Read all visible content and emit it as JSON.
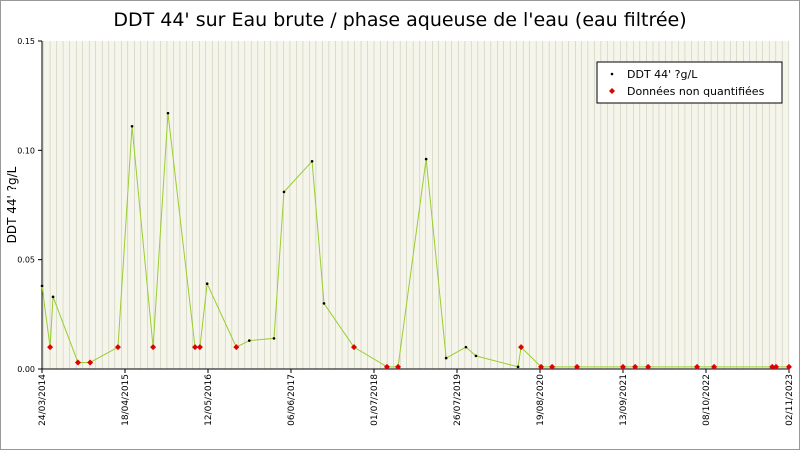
{
  "chart_data": {
    "type": "line",
    "title": "DDT 44' sur Eau brute / phase aqueuse de l'eau (eau filtrée)",
    "y_label": "DDT 44' ?g/L",
    "x": [
      "2014-03-24",
      "2014-05-01",
      "2014-05-15",
      "2014-09-09",
      "2014-11-05",
      "2015-03-16",
      "2015-05-21",
      "2015-08-28",
      "2015-11-06",
      "2016-03-12",
      "2016-04-04",
      "2016-05-08",
      "2016-09-22",
      "2016-11-22",
      "2017-03-18",
      "2017-05-04",
      "2017-09-13",
      "2017-11-08",
      "2018-03-29",
      "2018-08-31",
      "2018-10-22",
      "2019-03-03",
      "2019-06-05",
      "2019-09-06",
      "2019-10-23",
      "2020-05-08",
      "2020-05-22",
      "2020-08-24",
      "2020-10-15",
      "2021-02-09",
      "2021-09-13",
      "2021-11-09",
      "2022-01-09",
      "2022-08-27",
      "2022-11-15",
      "2023-08-15",
      "2023-09-02",
      "2023-11-02"
    ],
    "series": [
      {
        "name": "DDT 44' ?g/L",
        "color": "#000000",
        "marker": "dot",
        "values": [
          0.038,
          null,
          0.033,
          null,
          null,
          null,
          0.111,
          null,
          0.117,
          null,
          null,
          0.039,
          null,
          0.013,
          0.014,
          0.081,
          0.095,
          0.03,
          null,
          null,
          null,
          0.096,
          0.005,
          0.01,
          0.006,
          0.001,
          null,
          null,
          null,
          null,
          null,
          null,
          null,
          null,
          null,
          null,
          null,
          null
        ]
      },
      {
        "name": "Données non quantifiées",
        "color": "#e00000",
        "marker": "diamond",
        "values": [
          null,
          0.01,
          null,
          0.003,
          0.003,
          0.01,
          null,
          0.01,
          null,
          0.01,
          0.01,
          null,
          0.01,
          null,
          null,
          null,
          null,
          null,
          0.01,
          0.001,
          0.001,
          null,
          null,
          null,
          null,
          null,
          0.01,
          0.001,
          0.001,
          0.001,
          0.001,
          0.001,
          0.001,
          0.001,
          0.001,
          0.001,
          0.001,
          0.001
        ]
      }
    ],
    "line_color": "#9acd32",
    "xlim": [
      "2014-03-24",
      "2023-11-02"
    ],
    "xticks": [
      {
        "value": "2014-03-24",
        "label": "24/03/2014"
      },
      {
        "value": "2015-04-18",
        "label": "18/04/2015"
      },
      {
        "value": "2016-05-12",
        "label": "12/05/2016"
      },
      {
        "value": "2017-06-06",
        "label": "06/06/2017"
      },
      {
        "value": "2018-07-01",
        "label": "01/07/2018"
      },
      {
        "value": "2019-07-26",
        "label": "26/07/2019"
      },
      {
        "value": "2020-08-19",
        "label": "19/08/2020"
      },
      {
        "value": "2021-09-13",
        "label": "13/09/2021"
      },
      {
        "value": "2022-10-08",
        "label": "08/10/2022"
      },
      {
        "value": "2023-11-02",
        "label": "02/11/2023"
      }
    ],
    "ylim": [
      0,
      0.15
    ],
    "yticks": [
      {
        "value": 0,
        "label": "0.00"
      },
      {
        "value": 0.05,
        "label": "0.05"
      },
      {
        "value": 0.1,
        "label": "0.10"
      },
      {
        "value": 0.15,
        "label": "0.15"
      }
    ],
    "grid": true,
    "legend": "top-right"
  }
}
